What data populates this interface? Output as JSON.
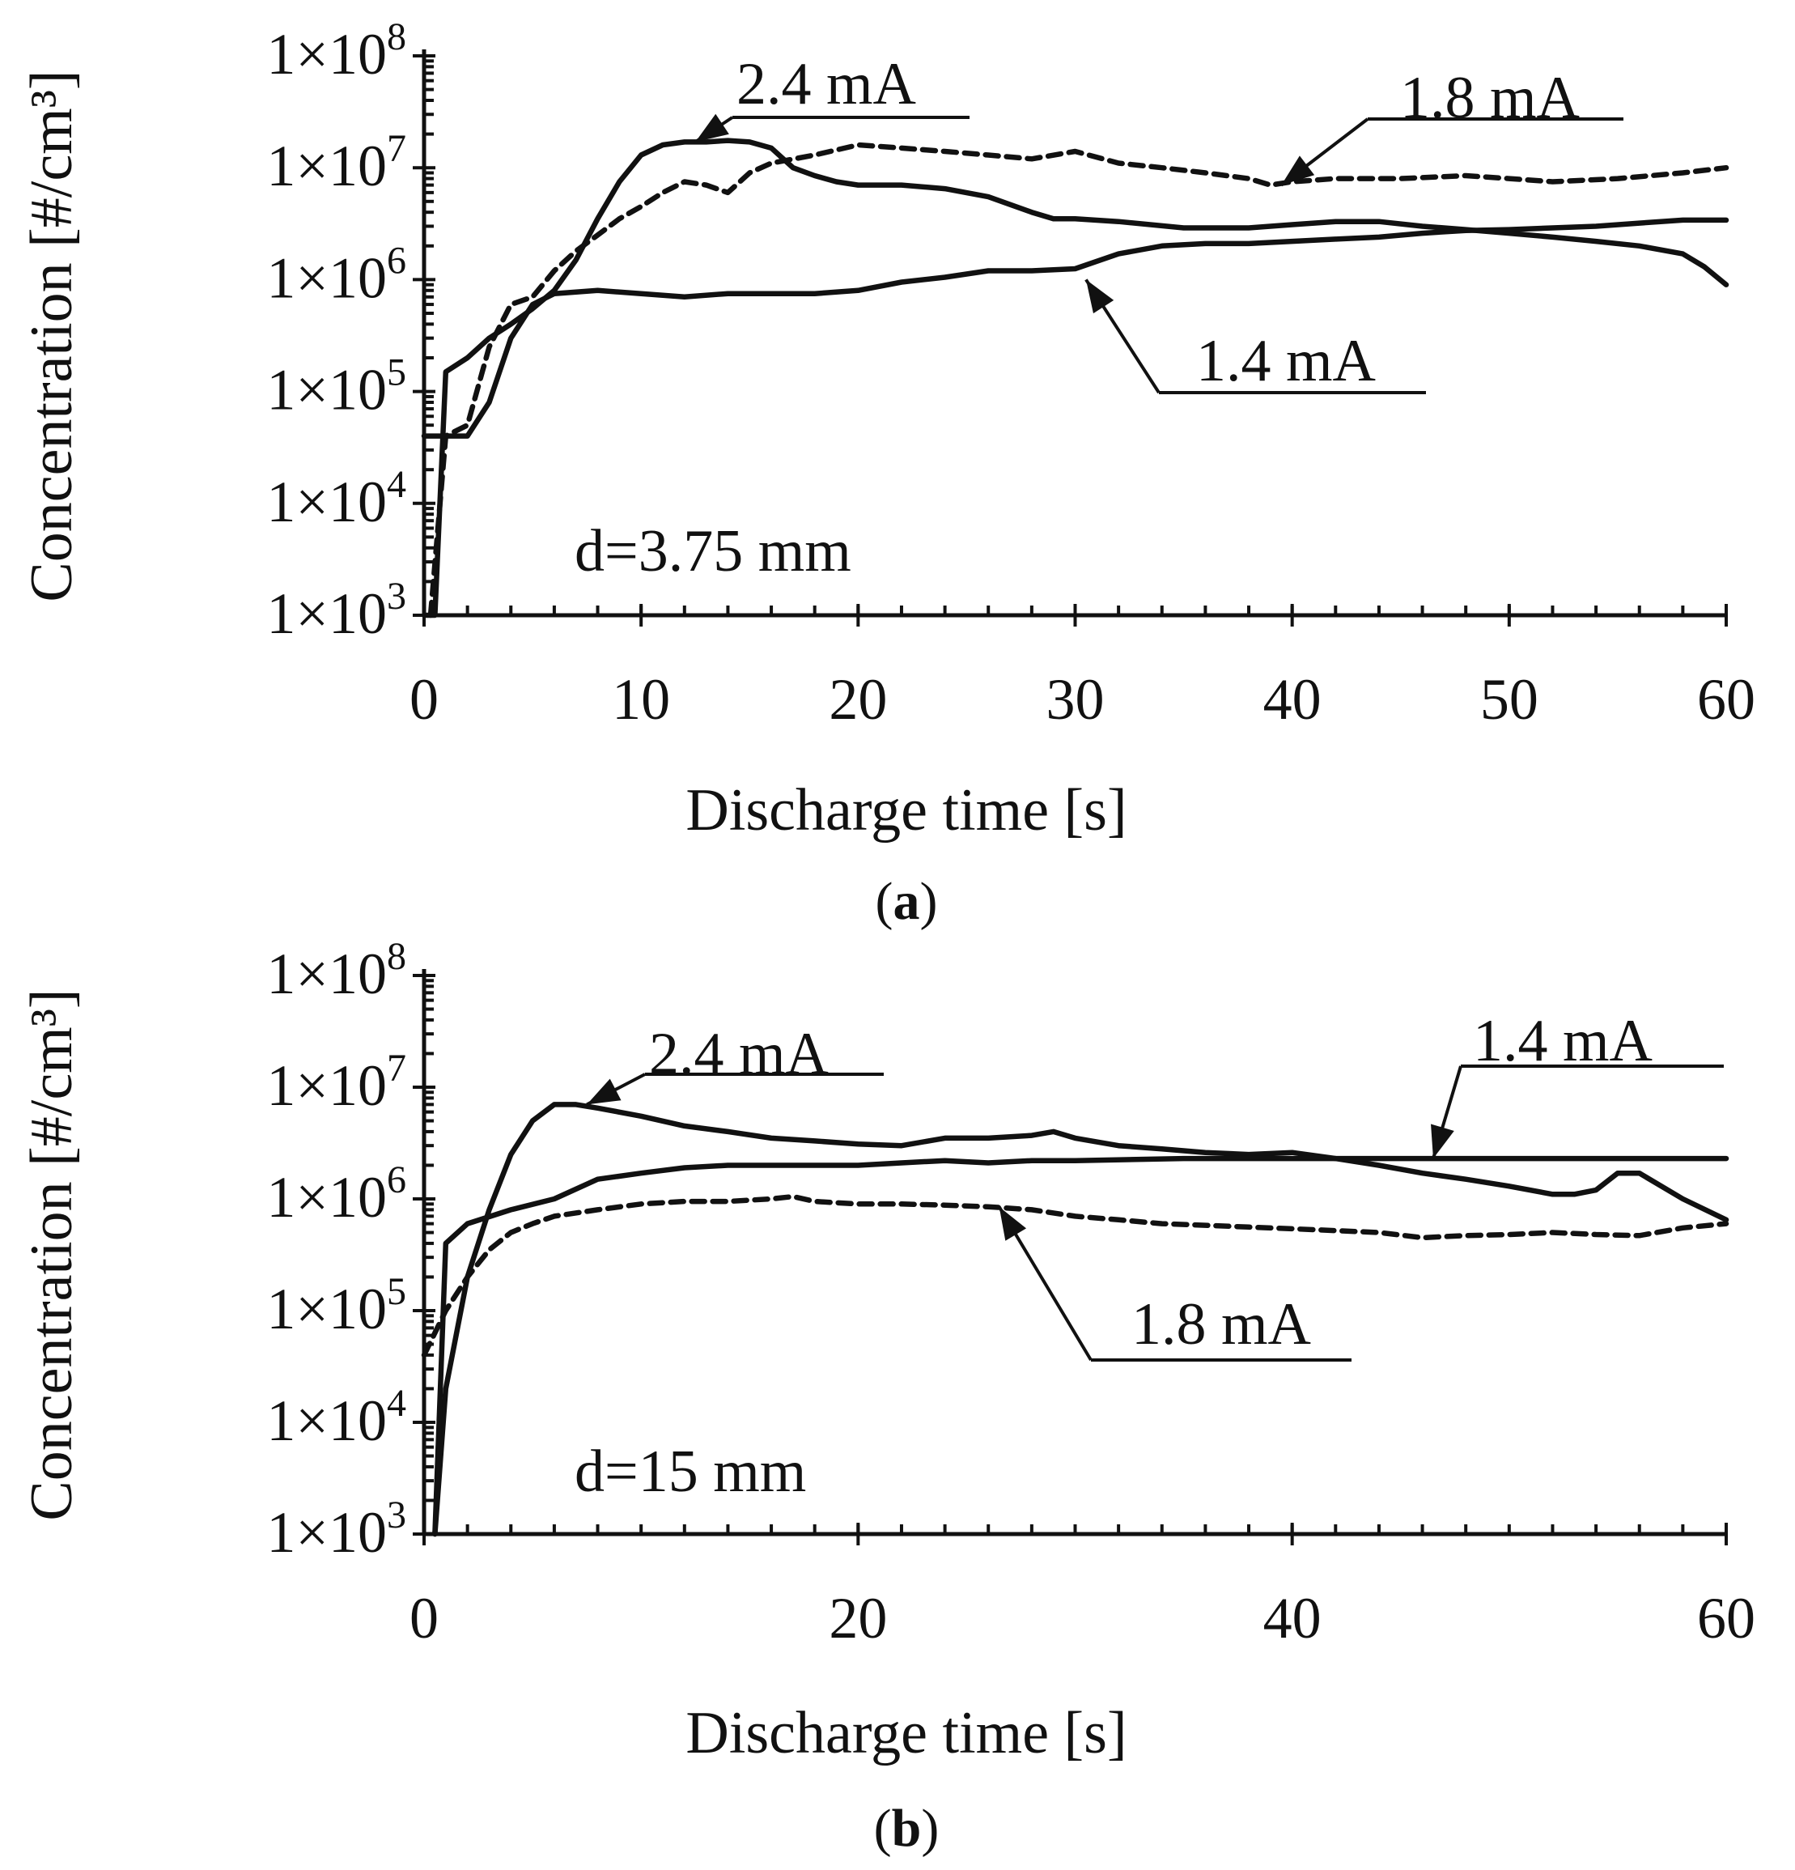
{
  "chart_data": [
    {
      "panel": "a",
      "caption": "a",
      "type": "line",
      "xlabel": "Discharge time [s]",
      "ylabel": "Concentration [#/cm³]",
      "y_scale": "log",
      "xlim": [
        0,
        60
      ],
      "ylim": [
        1000,
        100000000
      ],
      "x_ticks": [
        0,
        10,
        20,
        30,
        40,
        50,
        60
      ],
      "y_ticks": [
        {
          "value": 100000000,
          "mantissa": "1×10",
          "exp": "8"
        },
        {
          "value": 10000000,
          "mantissa": "1×10",
          "exp": "7"
        },
        {
          "value": 1000000,
          "mantissa": "1×10",
          "exp": "6"
        },
        {
          "value": 100000,
          "mantissa": "1×10",
          "exp": "5"
        },
        {
          "value": 10000,
          "mantissa": "1×10",
          "exp": "4"
        },
        {
          "value": 1000,
          "mantissa": "1×10",
          "exp": "3"
        }
      ],
      "annotation": "d=3.75 mm",
      "series": [
        {
          "name": "2.4 mA",
          "dash": false,
          "points": [
            [
              0,
              1000
            ],
            [
              0.5,
              1000
            ],
            [
              1,
              150000
            ],
            [
              2,
              200000
            ],
            [
              3,
              300000
            ],
            [
              4,
              400000
            ],
            [
              5,
              550000
            ],
            [
              6,
              800000
            ],
            [
              7,
              1500000
            ],
            [
              8,
              3500000
            ],
            [
              9,
              7500000
            ],
            [
              10,
              13000000
            ],
            [
              11,
              16000000
            ],
            [
              12,
              17000000
            ],
            [
              13,
              17000000
            ],
            [
              14,
              17500000
            ],
            [
              15,
              17000000
            ],
            [
              16,
              15000000
            ],
            [
              17,
              10000000
            ],
            [
              18,
              8500000
            ],
            [
              19,
              7500000
            ],
            [
              20,
              7000000
            ],
            [
              22,
              7000000
            ],
            [
              24,
              6500000
            ],
            [
              26,
              5500000
            ],
            [
              28,
              4000000
            ],
            [
              29,
              3500000
            ],
            [
              30,
              3500000
            ],
            [
              32,
              3300000
            ],
            [
              35,
              2900000
            ],
            [
              38,
              2900000
            ],
            [
              40,
              3100000
            ],
            [
              42,
              3300000
            ],
            [
              44,
              3300000
            ],
            [
              46,
              3000000
            ],
            [
              48,
              2800000
            ],
            [
              50,
              2600000
            ],
            [
              52,
              2400000
            ],
            [
              54,
              2200000
            ],
            [
              56,
              2000000
            ],
            [
              58,
              1700000
            ],
            [
              59,
              1300000
            ],
            [
              60,
              900000
            ]
          ]
        },
        {
          "name": "1.8 mA",
          "dash": true,
          "points": [
            [
              0.3,
              1000
            ],
            [
              1,
              40000
            ],
            [
              2,
              50000
            ],
            [
              3,
              250000
            ],
            [
              4,
              600000
            ],
            [
              5,
              700000
            ],
            [
              6,
              1200000
            ],
            [
              7,
              1800000
            ],
            [
              8,
              2500000
            ],
            [
              9,
              3500000
            ],
            [
              10,
              4500000
            ],
            [
              11,
              6000000
            ],
            [
              12,
              7500000
            ],
            [
              13,
              7000000
            ],
            [
              14,
              6000000
            ],
            [
              15,
              9000000
            ],
            [
              16,
              11000000
            ],
            [
              18,
              13000000
            ],
            [
              20,
              16000000
            ],
            [
              22,
              15000000
            ],
            [
              24,
              14000000
            ],
            [
              26,
              13000000
            ],
            [
              28,
              12000000
            ],
            [
              30,
              14000000
            ],
            [
              32,
              11000000
            ],
            [
              34,
              10000000
            ],
            [
              36,
              9000000
            ],
            [
              38,
              8000000
            ],
            [
              39,
              7000000
            ],
            [
              40,
              7500000
            ],
            [
              42,
              8000000
            ],
            [
              45,
              8000000
            ],
            [
              48,
              8500000
            ],
            [
              50,
              8000000
            ],
            [
              52,
              7500000
            ],
            [
              55,
              8000000
            ],
            [
              58,
              9000000
            ],
            [
              60,
              10000000
            ]
          ]
        },
        {
          "name": "1.4 mA",
          "dash": false,
          "points": [
            [
              0,
              40000
            ],
            [
              1,
              40000
            ],
            [
              2,
              40000
            ],
            [
              3,
              80000
            ],
            [
              4,
              300000
            ],
            [
              5,
              600000
            ],
            [
              6,
              750000
            ],
            [
              8,
              800000
            ],
            [
              10,
              750000
            ],
            [
              12,
              700000
            ],
            [
              14,
              750000
            ],
            [
              16,
              750000
            ],
            [
              18,
              750000
            ],
            [
              20,
              800000
            ],
            [
              22,
              950000
            ],
            [
              24,
              1050000
            ],
            [
              26,
              1200000
            ],
            [
              28,
              1200000
            ],
            [
              30,
              1250000
            ],
            [
              32,
              1700000
            ],
            [
              34,
              2000000
            ],
            [
              36,
              2100000
            ],
            [
              38,
              2100000
            ],
            [
              40,
              2200000
            ],
            [
              42,
              2300000
            ],
            [
              44,
              2400000
            ],
            [
              46,
              2600000
            ],
            [
              48,
              2750000
            ],
            [
              50,
              2800000
            ],
            [
              52,
              2900000
            ],
            [
              54,
              3000000
            ],
            [
              56,
              3200000
            ],
            [
              58,
              3400000
            ],
            [
              60,
              3400000
            ]
          ]
        }
      ],
      "callouts": [
        {
          "series": "2.4 mA",
          "label": "2.4 mA",
          "target": [
            12.5,
            17000000
          ]
        },
        {
          "series": "1.8 mA",
          "label": "1.8 mA",
          "target": [
            39.5,
            7000000
          ]
        },
        {
          "series": "1.4 mA",
          "label": "1.4 mA",
          "target": [
            30.5,
            1000000
          ]
        }
      ]
    },
    {
      "panel": "b",
      "caption": "b",
      "type": "line",
      "xlabel": "Discharge time [s]",
      "ylabel": "Concentration [#/cm³]",
      "y_scale": "log",
      "xlim": [
        0,
        60
      ],
      "ylim": [
        1000,
        100000000
      ],
      "x_ticks": [
        0,
        20,
        40,
        60
      ],
      "y_ticks": [
        {
          "value": 100000000,
          "mantissa": "1×10",
          "exp": "8"
        },
        {
          "value": 10000000,
          "mantissa": "1×10",
          "exp": "7"
        },
        {
          "value": 1000000,
          "mantissa": "1×10",
          "exp": "6"
        },
        {
          "value": 100000,
          "mantissa": "1×10",
          "exp": "5"
        },
        {
          "value": 10000,
          "mantissa": "1×10",
          "exp": "4"
        },
        {
          "value": 1000,
          "mantissa": "1×10",
          "exp": "3"
        }
      ],
      "y_axis_color": "#4a6fa5",
      "annotation": "d=15 mm",
      "series": [
        {
          "name": "2.4 mA",
          "dash": false,
          "points": [
            [
              0.5,
              1000
            ],
            [
              1,
              20000
            ],
            [
              2,
              200000
            ],
            [
              3,
              800000
            ],
            [
              4,
              2500000
            ],
            [
              5,
              5000000
            ],
            [
              6,
              7000000
            ],
            [
              7,
              7000000
            ],
            [
              8,
              6500000
            ],
            [
              10,
              5500000
            ],
            [
              12,
              4500000
            ],
            [
              14,
              4000000
            ],
            [
              16,
              3500000
            ],
            [
              18,
              3300000
            ],
            [
              20,
              3100000
            ],
            [
              22,
              3000000
            ],
            [
              24,
              3500000
            ],
            [
              26,
              3500000
            ],
            [
              28,
              3700000
            ],
            [
              29,
              4000000
            ],
            [
              30,
              3500000
            ],
            [
              32,
              3000000
            ],
            [
              34,
              2800000
            ],
            [
              36,
              2600000
            ],
            [
              38,
              2500000
            ],
            [
              40,
              2600000
            ],
            [
              42,
              2300000
            ],
            [
              44,
              2000000
            ],
            [
              46,
              1700000
            ],
            [
              48,
              1500000
            ],
            [
              50,
              1300000
            ],
            [
              52,
              1100000
            ],
            [
              53,
              1100000
            ],
            [
              54,
              1200000
            ],
            [
              55,
              1700000
            ],
            [
              56,
              1700000
            ],
            [
              58,
              1000000
            ],
            [
              60,
              650000
            ]
          ]
        },
        {
          "name": "1.8 mA",
          "dash": true,
          "points": [
            [
              0,
              40000
            ],
            [
              1,
              100000
            ],
            [
              2,
              200000
            ],
            [
              3,
              350000
            ],
            [
              4,
              500000
            ],
            [
              5,
              600000
            ],
            [
              6,
              700000
            ],
            [
              8,
              800000
            ],
            [
              10,
              900000
            ],
            [
              12,
              950000
            ],
            [
              14,
              950000
            ],
            [
              16,
              1000000
            ],
            [
              17,
              1050000
            ],
            [
              18,
              950000
            ],
            [
              20,
              900000
            ],
            [
              22,
              900000
            ],
            [
              24,
              880000
            ],
            [
              26,
              850000
            ],
            [
              28,
              800000
            ],
            [
              30,
              700000
            ],
            [
              32,
              650000
            ],
            [
              34,
              600000
            ],
            [
              36,
              580000
            ],
            [
              38,
              560000
            ],
            [
              40,
              540000
            ],
            [
              42,
              520000
            ],
            [
              44,
              500000
            ],
            [
              46,
              450000
            ],
            [
              48,
              470000
            ],
            [
              50,
              480000
            ],
            [
              52,
              500000
            ],
            [
              54,
              480000
            ],
            [
              56,
              470000
            ],
            [
              58,
              550000
            ],
            [
              60,
              600000
            ]
          ]
        },
        {
          "name": "1.4 mA",
          "dash": false,
          "points": [
            [
              0.5,
              1000
            ],
            [
              1,
              400000
            ],
            [
              2,
              600000
            ],
            [
              4,
              800000
            ],
            [
              6,
              1000000
            ],
            [
              8,
              1500000
            ],
            [
              10,
              1700000
            ],
            [
              12,
              1900000
            ],
            [
              14,
              2000000
            ],
            [
              16,
              2000000
            ],
            [
              18,
              2000000
            ],
            [
              20,
              2000000
            ],
            [
              22,
              2100000
            ],
            [
              24,
              2200000
            ],
            [
              26,
              2100000
            ],
            [
              28,
              2200000
            ],
            [
              30,
              2200000
            ],
            [
              35,
              2300000
            ],
            [
              40,
              2300000
            ],
            [
              45,
              2300000
            ],
            [
              50,
              2300000
            ],
            [
              55,
              2300000
            ],
            [
              60,
              2300000
            ]
          ]
        }
      ],
      "callouts": [
        {
          "series": "2.4 mA",
          "label": "2.4 mA",
          "target": [
            7.5,
            7000000
          ]
        },
        {
          "series": "1.4 mA",
          "label": "1.4 mA",
          "target": [
            46.5,
            2300000
          ]
        },
        {
          "series": "1.8 mA",
          "label": "1.8 mA",
          "target": [
            26.5,
            850000
          ]
        }
      ]
    }
  ]
}
